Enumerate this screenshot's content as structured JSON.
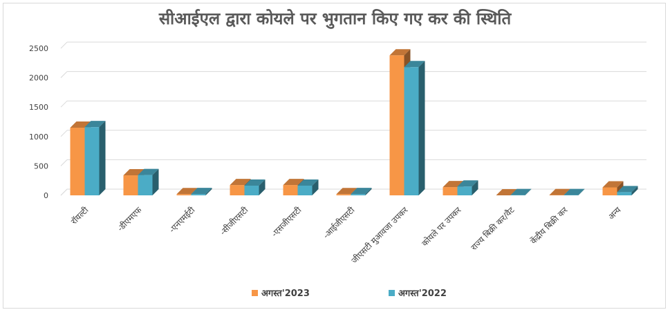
{
  "chart_data": {
    "type": "bar",
    "title": "सीआईएल द्वारा कोयले पर भुगतान किए गए कर की स्थिति",
    "categories": [
      "रॉयल्टी",
      "-डीएमएफ",
      "-एनएमईटी",
      "-सीजीएसटी",
      "-एसजीएसटी",
      "-आईजीएसटी",
      "जीएसटी मुआवजा उपकर",
      "कोयले पर उपकर",
      "राज्य बिक्री कर/वैट",
      "केंद्रीय बिक्री कर",
      "अन्य"
    ],
    "series": [
      {
        "name": "अगस्त'2023",
        "color": "#f79646",
        "values": [
          1150,
          340,
          20,
          175,
          175,
          20,
          2380,
          140,
          0,
          5,
          135
        ]
      },
      {
        "name": "अगस्त'2022",
        "color": "#4bacc6",
        "values": [
          1160,
          345,
          22,
          165,
          165,
          22,
          2180,
          150,
          5,
          5,
          55
        ]
      }
    ],
    "ylim": [
      0,
      2500
    ],
    "yticks": [
      0,
      500,
      1000,
      1500,
      2000,
      2500
    ],
    "grid": true,
    "legend": "bottom"
  }
}
